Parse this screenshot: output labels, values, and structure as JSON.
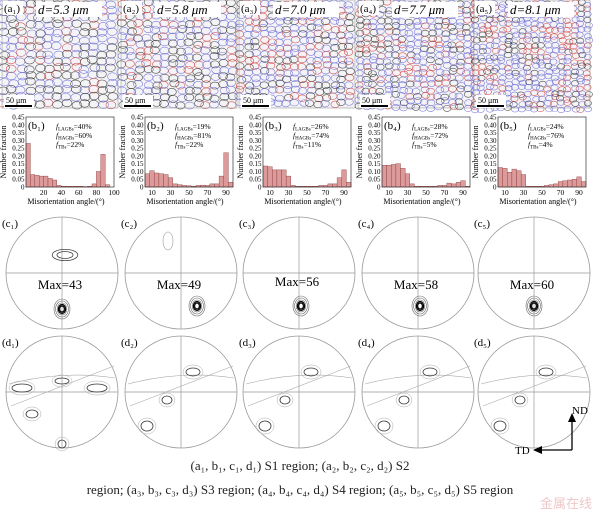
{
  "panels": [
    {
      "a_label": "(a₁)",
      "d_text": "d=5.3 μm",
      "b_label": "(b₁)",
      "f_lagb": "=40%",
      "f_hagb": "=60%",
      "f_tb": "=22%",
      "c_label": "(c₁)",
      "max": "Max=43",
      "d_label": "(d₁)"
    },
    {
      "a_label": "(a₂)",
      "d_text": "d=5.8 μm",
      "b_label": "(b₂)",
      "f_lagb": "=19%",
      "f_hagb": "=81%",
      "f_tb": "=22%",
      "c_label": "(c₂)",
      "max": "Max=49",
      "d_label": "(d₂)"
    },
    {
      "a_label": "(a₃)",
      "d_text": "d=7.0 μm",
      "b_label": "(b₃)",
      "f_lagb": "=26%",
      "f_hagb": "=74%",
      "f_tb": "=11%",
      "c_label": "(c₃)",
      "max": "Max=56",
      "d_label": "(d₃)"
    },
    {
      "a_label": "(a₄)",
      "d_text": "d=7.7 μm",
      "b_label": "(b₄)",
      "f_lagb": "=28%",
      "f_hagb": "=72%",
      "f_tb": "=5%",
      "c_label": "(c₄)",
      "max": "Max=58",
      "d_label": "(d₄)"
    },
    {
      "a_label": "(a₅)",
      "d_text": "d=8.1 μm",
      "b_label": "(b₅)",
      "f_lagb": "=24%",
      "f_hagb": "=76%",
      "f_tb": "=4%",
      "c_label": "(c₅)",
      "max": "Max=60",
      "d_label": "(d₅)"
    }
  ],
  "scale_bar": "50 μm",
  "labels": {
    "f": "f",
    "lagb_sub": "LAGBs",
    "hagb_sub": "HAGBs",
    "tb_sub": "TBs"
  },
  "axes": {
    "nd": "ND",
    "td": "TD"
  },
  "caption": {
    "line1": "(a₁, b₁, c₁, d₁) S1 region; (a₂, b₂, c₂, d₂) S2",
    "line2": "region; (a₃, b₃, c₃, d₃) S3 region; (a₄, b₄, c₄, d₄) S4 region; (a₅, b₅, c₅, d₅) S5 region"
  },
  "watermark": "金属在线",
  "colors": {
    "bar": "#dc9a9a",
    "bar_edge": "#8a3a3a",
    "lagb": "#6a6ad8",
    "hagb": "#333333",
    "twin": "#d04040"
  },
  "chart_data": [
    {
      "type": "bar",
      "title": "(b₁)",
      "xlabel": "Misorientation angle/(°)",
      "ylabel": "Number fraction",
      "ylim": [
        0,
        0.45
      ],
      "xlim": [
        0,
        100
      ],
      "xticks": [
        20,
        40,
        60,
        80,
        100
      ],
      "yticks": [
        0,
        0.05,
        0.1,
        0.15,
        0.2,
        0.25,
        0.3,
        0.35,
        0.4,
        0.45
      ],
      "x": [
        2.5,
        7.5,
        12.5,
        17.5,
        22.5,
        27.5,
        32.5,
        37.5,
        42.5,
        47.5,
        52.5,
        57.5,
        62.5,
        67.5,
        72.5,
        77.5,
        82.5,
        87.5,
        92.5
      ],
      "values": [
        0.28,
        0.08,
        0.075,
        0.07,
        0.07,
        0.055,
        0.045,
        0.01,
        0.005,
        0.005,
        0.005,
        0.005,
        0.005,
        0.003,
        0.005,
        0.02,
        0.1,
        0.21,
        0.015
      ]
    },
    {
      "type": "bar",
      "title": "(b₂)",
      "xlabel": "Misorientation angle/(°)",
      "ylabel": "Number fraction",
      "ylim": [
        0,
        0.45
      ],
      "xlim": [
        2.5,
        97.5
      ],
      "xticks": [
        10,
        30,
        50,
        70,
        90
      ],
      "yticks": [
        0,
        0.05,
        0.1,
        0.15,
        0.2,
        0.25,
        0.3,
        0.35,
        0.4,
        0.45
      ],
      "x": [
        5,
        10,
        15,
        20,
        25,
        30,
        35,
        40,
        45,
        50,
        55,
        60,
        65,
        70,
        75,
        80,
        85,
        90,
        95
      ],
      "values": [
        0.085,
        0.105,
        0.09,
        0.085,
        0.08,
        0.06,
        0.02,
        0.015,
        0.01,
        0.008,
        0.005,
        0.01,
        0.012,
        0.01,
        0.02,
        0.02,
        0.07,
        0.22,
        0.03
      ]
    },
    {
      "type": "bar",
      "title": "(b₃)",
      "xlabel": "Misorientation angle/(°)",
      "ylabel": "Number fraction",
      "ylim": [
        0,
        0.45
      ],
      "xlim": [
        2.5,
        97.5
      ],
      "xticks": [
        10,
        30,
        50,
        70,
        90
      ],
      "yticks": [
        0,
        0.05,
        0.1,
        0.15,
        0.2,
        0.25,
        0.3,
        0.35,
        0.4,
        0.45
      ],
      "x": [
        5,
        10,
        15,
        20,
        25,
        30,
        35,
        40,
        45,
        50,
        55,
        60,
        65,
        70,
        75,
        80,
        85,
        90,
        95
      ],
      "values": [
        0.135,
        0.13,
        0.11,
        0.11,
        0.11,
        0.07,
        0.01,
        0.005,
        0.005,
        0.005,
        0.005,
        0.005,
        0.01,
        0.01,
        0.02,
        0.02,
        0.06,
        0.11,
        0.03
      ]
    },
    {
      "type": "bar",
      "title": "(b₄)",
      "xlabel": "Misorientation angle/(°)",
      "ylabel": "Number fraction",
      "ylim": [
        0,
        0.45
      ],
      "xlim": [
        2.5,
        97.5
      ],
      "xticks": [
        10,
        30,
        50,
        70,
        90
      ],
      "yticks": [
        0,
        0.05,
        0.1,
        0.15,
        0.2,
        0.25,
        0.3,
        0.35,
        0.4,
        0.45
      ],
      "x": [
        5,
        10,
        15,
        20,
        25,
        30,
        35,
        40,
        45,
        50,
        55,
        60,
        65,
        70,
        75,
        80,
        85,
        90,
        95
      ],
      "values": [
        0.14,
        0.14,
        0.145,
        0.15,
        0.12,
        0.085,
        0.02,
        0.005,
        0.005,
        0.005,
        0.005,
        0.005,
        0.01,
        0.01,
        0.025,
        0.02,
        0.03,
        0.04,
        0.005
      ]
    },
    {
      "type": "bar",
      "title": "(b₅)",
      "xlabel": "Misorientation angle/(°)",
      "ylabel": "Number fraction",
      "ylim": [
        0,
        0.45
      ],
      "xlim": [
        2.5,
        97.5
      ],
      "xticks": [
        10,
        30,
        50,
        70,
        90
      ],
      "yticks": [
        0,
        0.05,
        0.1,
        0.15,
        0.2,
        0.25,
        0.3,
        0.35,
        0.4,
        0.45
      ],
      "x": [
        5,
        10,
        15,
        20,
        25,
        30,
        35,
        40,
        45,
        50,
        55,
        60,
        65,
        70,
        75,
        80,
        85,
        90,
        95
      ],
      "values": [
        0.125,
        0.12,
        0.095,
        0.115,
        0.105,
        0.08,
        0.005,
        0.005,
        0.005,
        0.005,
        0.01,
        0.015,
        0.02,
        0.035,
        0.04,
        0.045,
        0.05,
        0.065,
        0.035
      ]
    }
  ]
}
